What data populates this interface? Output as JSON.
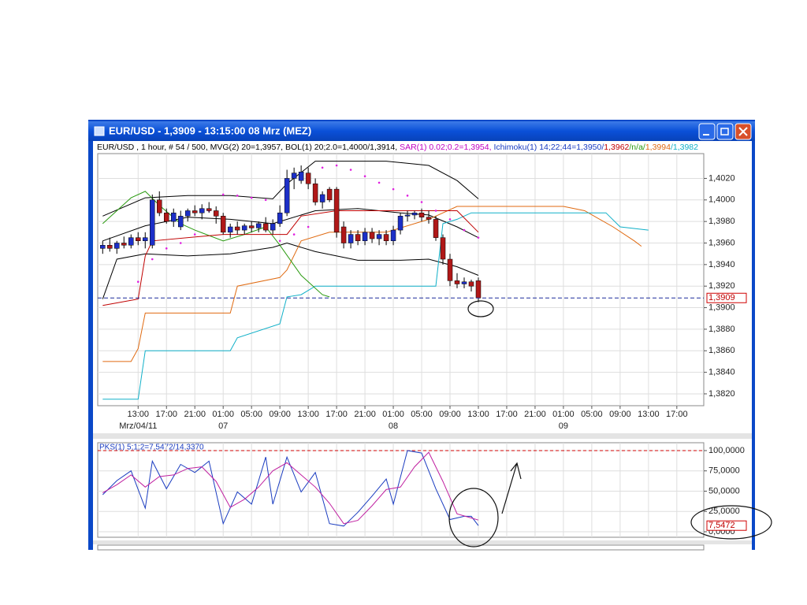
{
  "window": {
    "title": "EUR/USD - 1,3909 - 13:15:00  08 Mrz (MEZ)"
  },
  "info": [
    {
      "text": "EUR/USD , 1 hour, # 54 / 500, MVG(2) 20=1,3957, BOL(1) 20;2.0=1,4000/1,3914, ",
      "color": "#000000"
    },
    {
      "text": "SAR(1) 0.02;0.2=1,3954, ",
      "color": "#c000c0"
    },
    {
      "text": "Ichimoku(1) 14;22;44=1,3950/",
      "color": "#1a3cc0"
    },
    {
      "text": "1,3962",
      "color": "#c00000"
    },
    {
      "text": "/n/a/",
      "color": "#2a9a10"
    },
    {
      "text": "1,3994",
      "color": "#e06a10"
    },
    {
      "text": "/1,3982",
      "color": "#10b0c8"
    }
  ],
  "chart_data": [
    {
      "type": "candlestick",
      "open": [
        1.3955,
        1.3958,
        1.3955,
        1.396,
        1.3958,
        1.3965,
        1.3962,
        1.3958,
        1.4,
        1.3988,
        1.398,
        1.3975,
        1.3985,
        1.399,
        1.3988,
        1.3992,
        1.399,
        1.3985,
        1.397,
        1.3975,
        1.3972,
        1.3976,
        1.3974,
        1.3978,
        1.3972,
        1.3978,
        1.3988,
        1.402,
        1.4018,
        1.4025,
        1.4015,
        1.3998,
        1.401,
        1.401,
        1.3975,
        1.396,
        1.3968,
        1.3962,
        1.397,
        1.3964,
        1.3968,
        1.3962,
        1.3972,
        1.3985,
        1.3986,
        1.3988,
        1.3984,
        1.3982,
        1.3965,
        1.3945,
        1.3925,
        1.3922,
        1.3924,
        1.3925
      ],
      "high": [
        1.3962,
        1.3965,
        1.3962,
        1.3966,
        1.3968,
        1.397,
        1.397,
        1.4005,
        1.4008,
        1.3992,
        1.3992,
        1.399,
        1.3992,
        1.3995,
        1.3996,
        1.3998,
        1.3994,
        1.3988,
        1.3978,
        1.398,
        1.3978,
        1.398,
        1.398,
        1.3984,
        1.3982,
        1.3995,
        1.4028,
        1.403,
        1.4032,
        1.403,
        1.402,
        1.4008,
        1.4012,
        1.4012,
        1.398,
        1.3972,
        1.3972,
        1.3974,
        1.3974,
        1.3972,
        1.3972,
        1.3976,
        1.3988,
        1.399,
        1.399,
        1.3992,
        1.399,
        1.3985,
        1.3968,
        1.395,
        1.3932,
        1.3928,
        1.3926,
        1.3928
      ],
      "low": [
        1.395,
        1.3952,
        1.395,
        1.3955,
        1.3955,
        1.3958,
        1.3955,
        1.3955,
        1.3985,
        1.3978,
        1.3975,
        1.3972,
        1.398,
        1.3985,
        1.3982,
        1.3988,
        1.3978,
        1.3968,
        1.3965,
        1.3968,
        1.3968,
        1.397,
        1.397,
        1.397,
        1.3968,
        1.3975,
        1.3985,
        1.401,
        1.4015,
        1.401,
        1.3995,
        1.3992,
        1.3998,
        1.3965,
        1.3955,
        1.3955,
        1.3958,
        1.3958,
        1.396,
        1.3958,
        1.3958,
        1.3958,
        1.3968,
        1.398,
        1.3982,
        1.398,
        1.3978,
        1.3962,
        1.394,
        1.392,
        1.3918,
        1.3918,
        1.3915,
        1.3905
      ],
      "close": [
        1.3958,
        1.3955,
        1.396,
        1.3958,
        1.3965,
        1.3962,
        1.3965,
        1.4,
        1.3988,
        1.398,
        1.3988,
        1.3985,
        1.399,
        1.3988,
        1.3992,
        1.399,
        1.3985,
        1.397,
        1.3975,
        1.3972,
        1.3976,
        1.3974,
        1.3978,
        1.3972,
        1.3978,
        1.3988,
        1.402,
        1.4025,
        1.4026,
        1.4015,
        1.3998,
        1.4005,
        1.4,
        1.397,
        1.396,
        1.3968,
        1.3962,
        1.397,
        1.3964,
        1.3968,
        1.3962,
        1.3972,
        1.3985,
        1.3986,
        1.3988,
        1.3984,
        1.3982,
        1.3965,
        1.3945,
        1.3925,
        1.3922,
        1.3924,
        1.392,
        1.3909
      ],
      "up_color": "#1c2fc8",
      "down_color": "#b01818",
      "xlim": [
        -0.7,
        84.8
      ],
      "xticks": [
        {
          "value": 5,
          "label": "13:00"
        },
        {
          "value": 9,
          "label": "17:00"
        },
        {
          "value": 13,
          "label": "21:00"
        },
        {
          "value": 17,
          "label": "01:00"
        },
        {
          "value": 21,
          "label": "05:00"
        },
        {
          "value": 25,
          "label": "09:00"
        },
        {
          "value": 29,
          "label": "13:00"
        },
        {
          "value": 33,
          "label": "17:00"
        },
        {
          "value": 37,
          "label": "21:00"
        },
        {
          "value": 41,
          "label": "01:00"
        },
        {
          "value": 45,
          "label": "05:00"
        },
        {
          "value": 49,
          "label": "09:00"
        },
        {
          "value": 53,
          "label": "13:00"
        },
        {
          "value": 57,
          "label": "17:00"
        },
        {
          "value": 61,
          "label": "21:00"
        },
        {
          "value": 65,
          "label": "01:00"
        },
        {
          "value": 69,
          "label": "05:00"
        },
        {
          "value": 73,
          "label": "09:00"
        },
        {
          "value": 77,
          "label": "13:00"
        },
        {
          "value": 81,
          "label": "17:00"
        }
      ],
      "date_labels": [
        {
          "value": 5,
          "label": "Mrz/04/11"
        },
        {
          "value": 17,
          "label": "07"
        },
        {
          "value": 41,
          "label": "08"
        },
        {
          "value": 65,
          "label": "09"
        }
      ],
      "ylim": [
        1.3809,
        1.4043
      ],
      "yticks": [
        {
          "value": 1.382,
          "label": "1,3820"
        },
        {
          "value": 1.384,
          "label": "1,3840"
        },
        {
          "value": 1.386,
          "label": "1,3860"
        },
        {
          "value": 1.388,
          "label": "1,3880"
        },
        {
          "value": 1.39,
          "label": "1,3900"
        },
        {
          "value": 1.392,
          "label": "1,3920"
        },
        {
          "value": 1.394,
          "label": "1,3940"
        },
        {
          "value": 1.396,
          "label": "1,3960"
        },
        {
          "value": 1.398,
          "label": "1,3980"
        },
        {
          "value": 1.4,
          "label": "1,4000"
        },
        {
          "value": 1.402,
          "label": "1,4020"
        }
      ],
      "grid": true,
      "last": {
        "value": 1.3909,
        "label": "1,3909"
      },
      "lines": [
        {
          "style": "line",
          "color": "#000000",
          "x": [
            0,
            6,
            12,
            18,
            24,
            26,
            30,
            40,
            46,
            50,
            53
          ],
          "values": [
            1.3985,
            1.4002,
            1.4004,
            1.4004,
            1.4001,
            1.4015,
            1.4036,
            1.4036,
            1.4032,
            1.4018,
            1.4001
          ]
        },
        {
          "style": "line",
          "color": "#000000",
          "x": [
            0,
            6,
            12,
            18,
            24,
            30,
            36,
            42,
            46,
            50,
            53
          ],
          "values": [
            1.3962,
            1.3976,
            1.3984,
            1.3982,
            1.3978,
            1.399,
            1.3992,
            1.3988,
            1.3986,
            1.3975,
            1.3965
          ]
        },
        {
          "style": "line",
          "color": "#000000",
          "x": [
            0,
            2,
            6,
            12,
            18,
            24,
            26,
            30,
            36,
            42,
            46,
            50,
            53
          ],
          "values": [
            1.3908,
            1.3945,
            1.395,
            1.3948,
            1.395,
            1.3956,
            1.396,
            1.3952,
            1.3944,
            1.3944,
            1.3945,
            1.3938,
            1.393
          ]
        },
        {
          "style": "line",
          "color": "#e06a10",
          "x": [
            0,
            4,
            5,
            6,
            18,
            19,
            25,
            26,
            28,
            32,
            40,
            46,
            50,
            65,
            68,
            72,
            75,
            76
          ],
          "values": [
            1.385,
            1.385,
            1.3862,
            1.3895,
            1.3895,
            1.392,
            1.3928,
            1.3935,
            1.3962,
            1.397,
            1.397,
            1.3982,
            1.3994,
            1.3994,
            1.399,
            1.3975,
            1.3962,
            1.3957
          ]
        },
        {
          "style": "line",
          "color": "#10b0c8",
          "x": [
            0,
            5,
            6,
            18,
            19,
            25,
            26,
            28,
            30,
            47,
            48,
            50,
            52,
            71,
            73,
            77
          ],
          "values": [
            1.3815,
            1.3815,
            1.386,
            1.386,
            1.3872,
            1.3885,
            1.391,
            1.3912,
            1.392,
            1.392,
            1.3978,
            1.3982,
            1.3988,
            1.3988,
            1.3975,
            1.3972
          ]
        },
        {
          "style": "line",
          "color": "#2a9a10",
          "x": [
            0,
            4,
            6,
            8,
            11,
            13,
            17,
            20,
            23,
            25,
            28,
            31,
            32
          ],
          "values": [
            1.3978,
            1.4002,
            1.4008,
            1.3995,
            1.3978,
            1.3972,
            1.3962,
            1.3968,
            1.3975,
            1.3958,
            1.393,
            1.3912,
            1.391
          ]
        },
        {
          "style": "line",
          "color": "#c00000",
          "x": [
            0,
            5,
            6,
            7,
            17,
            26,
            28,
            33,
            50,
            53
          ],
          "values": [
            1.3902,
            1.3908,
            1.3948,
            1.3962,
            1.3968,
            1.3968,
            1.3985,
            1.399,
            1.399,
            1.397
          ]
        },
        {
          "style": "dots",
          "color": "#e020e0",
          "x": [
            5,
            7,
            9,
            11,
            13,
            15,
            17,
            19,
            21,
            23,
            25,
            27,
            29,
            31,
            33,
            35,
            37,
            39,
            41,
            43,
            45,
            47,
            49,
            51,
            53
          ],
          "values": [
            1.3924,
            1.3945,
            1.3955,
            1.396,
            1.3968,
            1.399,
            1.4005,
            1.4004,
            1.4002,
            1.4,
            1.3962,
            1.3968,
            1.3975,
            1.403,
            1.4032,
            1.4028,
            1.4022,
            1.4016,
            1.401,
            1.4004,
            1.3998,
            1.399,
            1.3982,
            1.3972,
            1.3965
          ]
        }
      ]
    },
    {
      "type": "line",
      "title": "PKS(1) 5;1;2=7,5472/14,3370",
      "xlim": [
        -0.7,
        84.8
      ],
      "ylim": [
        -6.8,
        109.7
      ],
      "yticks": [
        {
          "value": 100,
          "label": "100,0000"
        },
        {
          "value": 75,
          "label": "75,0000"
        },
        {
          "value": 50,
          "label": "50,0000"
        },
        {
          "value": 25,
          "label": "25,0000"
        },
        {
          "value": 0,
          "label": "0,0000"
        }
      ],
      "grid": true,
      "hline": 100,
      "last": {
        "value": 7.5472,
        "label": "7,5472"
      },
      "series": [
        {
          "color": "#1a3cc0",
          "x": [
            0,
            2,
            4,
            6,
            7,
            9,
            11,
            13,
            15,
            17,
            19,
            21,
            23,
            24,
            26,
            28,
            30,
            32,
            34,
            36,
            38,
            40,
            41,
            43,
            45,
            47,
            49,
            51,
            52,
            53
          ],
          "values": [
            45.6,
            63,
            75,
            29,
            87,
            53,
            83,
            73,
            87,
            10,
            49,
            34,
            92,
            34,
            92,
            49,
            73,
            10,
            7,
            24,
            44,
            65,
            34,
            100,
            97,
            53,
            15,
            19,
            19,
            7.5472
          ]
        },
        {
          "color": "#c020a0",
          "x": [
            0,
            2,
            4,
            6,
            8,
            10,
            12,
            14,
            16,
            18,
            20,
            22,
            24,
            26,
            28,
            30,
            32,
            34,
            36,
            38,
            40,
            42,
            44,
            46,
            48,
            50,
            52,
            53
          ],
          "values": [
            48,
            58,
            70,
            55,
            68,
            70,
            78,
            80,
            62,
            30,
            40,
            55,
            75,
            85,
            70,
            55,
            35,
            10,
            14,
            32,
            52,
            55,
            80,
            98,
            62,
            22,
            17,
            14.337
          ]
        }
      ]
    }
  ]
}
